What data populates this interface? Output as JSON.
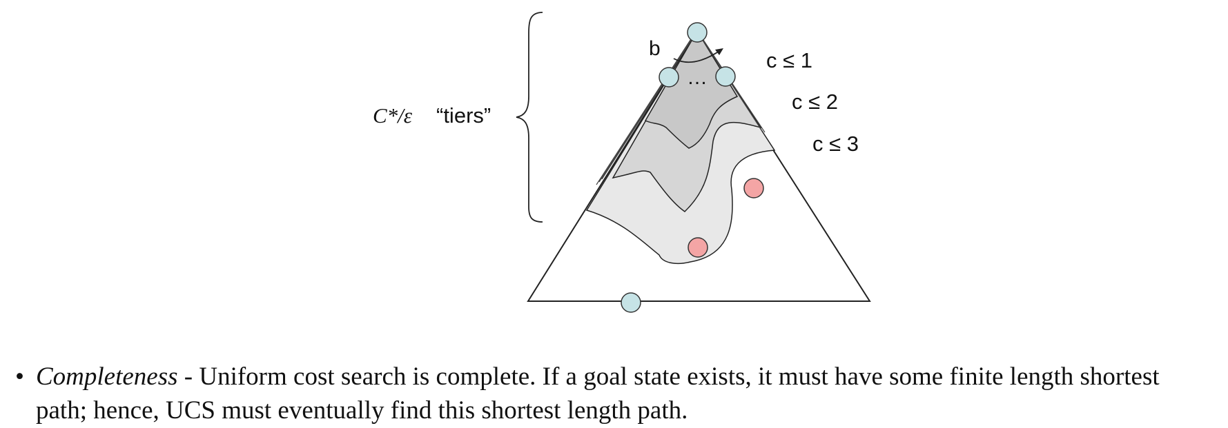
{
  "diagram": {
    "tiers_label": {
      "expr": "C*/ε",
      "word": "“tiers”"
    },
    "branching_label": "b",
    "ellipsis": "…",
    "cost_labels": [
      "c ≤ 1",
      "c ≤ 2",
      "c ≤ 3"
    ],
    "colors": {
      "frontier_node": "#c6e3e6",
      "goal_node": "#f4a5a5",
      "tier1_fill": "#c8c8c8",
      "tier2_fill": "#d6d6d6",
      "tier3_fill": "#e8e8e8",
      "stroke": "#222222"
    }
  },
  "bullet": {
    "symbol": "•",
    "term": "Completeness",
    "text": " - Uniform cost search is complete. If a goal state exists, it must have some finite length shortest path; hence, UCS must eventually find this shortest length path."
  }
}
